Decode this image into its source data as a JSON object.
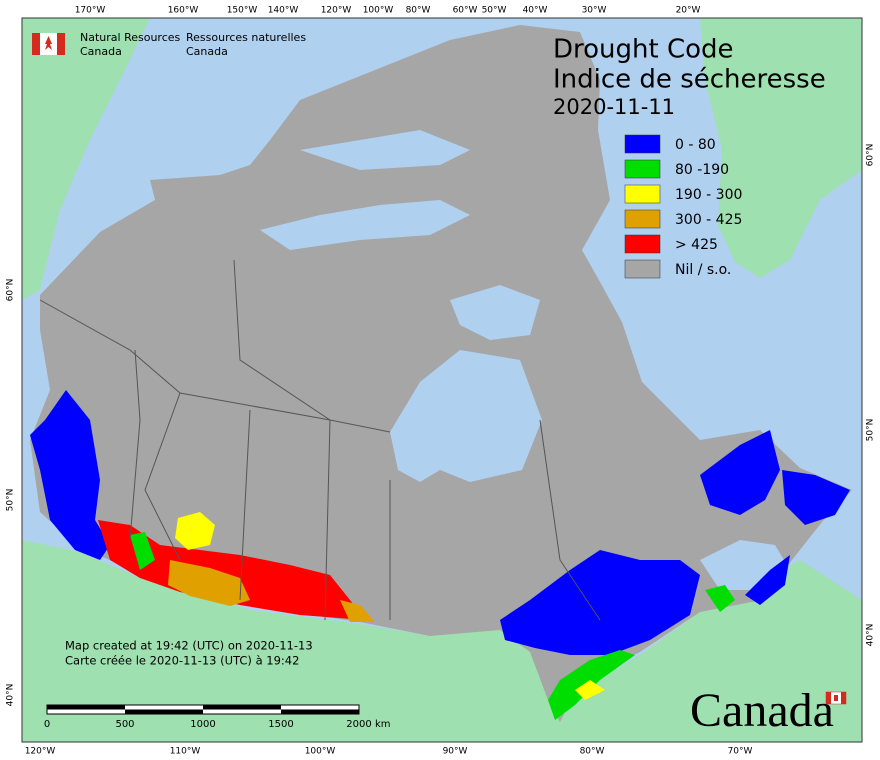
{
  "header": {
    "org_en": [
      "Natural Resources",
      "Canada"
    ],
    "org_fr": [
      "Ressources naturelles",
      "Canada"
    ]
  },
  "map": {
    "title": [
      "Drought Code",
      "Indice de sécheresse"
    ],
    "date": "2020-11-11",
    "legend": [
      {
        "label": "0 - 80",
        "color": "#0000ff"
      },
      {
        "label": "80 -190",
        "color": "#00dd00"
      },
      {
        "label": "190 - 300",
        "color": "#ffff00"
      },
      {
        "label": "300 - 425",
        "color": "#e0a000"
      },
      {
        "label": "> 425",
        "color": "#ff0000"
      },
      {
        "label": "Nil / s.o.",
        "color": "#a6a6a6"
      }
    ],
    "graticule": {
      "top": [
        "170°W",
        "160°W",
        "150°W",
        "140°W",
        "120°W",
        "100°W",
        "80°W",
        "60°W",
        "50°W",
        "40°W",
        "30°W",
        "20°W"
      ],
      "bottom": [
        "120°W",
        "110°W",
        "100°W",
        "90°W",
        "80°W",
        "70°W"
      ],
      "left": [
        "60°N",
        "50°N",
        "40°N"
      ],
      "right": [
        "60°N",
        "50°N",
        "40°N"
      ]
    }
  },
  "footer": {
    "notes": [
      "Map created at 19:42 (UTC) on 2020-11-13",
      "Carte créée le 2020-11-13 (UTC) à 19:42"
    ],
    "scale": {
      "ticks": [
        0,
        500,
        1000,
        1500,
        2000
      ],
      "unit": "km"
    },
    "wordmark": "Canada"
  }
}
